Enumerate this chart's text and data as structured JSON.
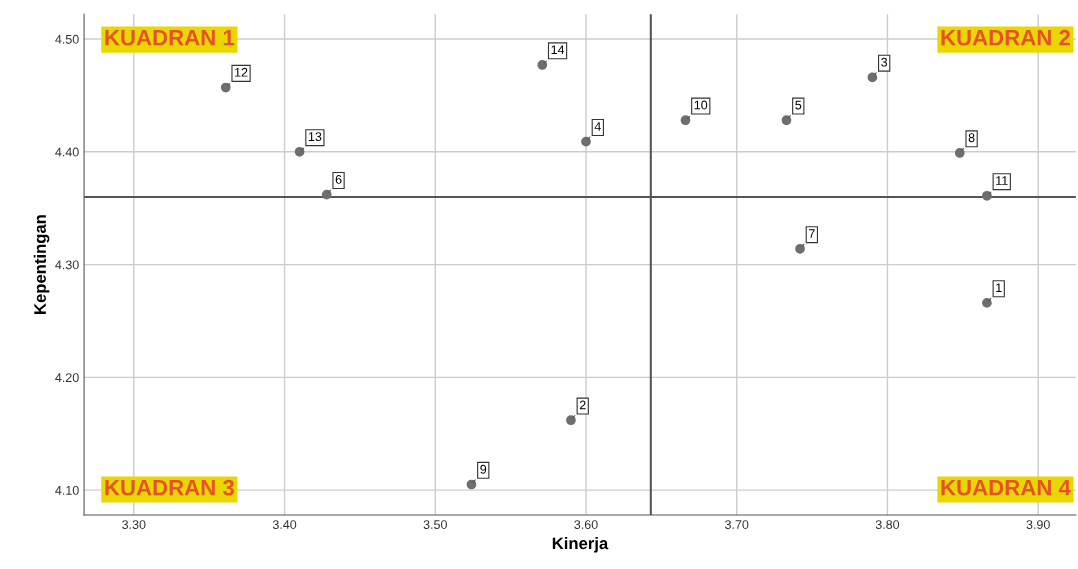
{
  "chart_data": {
    "type": "scatter",
    "xlabel": "Kinerja",
    "ylabel": "Kepentingan",
    "x": [
      3.866,
      3.59,
      3.79,
      3.6,
      3.733,
      3.428,
      3.742,
      3.848,
      3.524,
      3.666,
      3.866,
      3.361,
      3.41,
      3.571
    ],
    "series": [
      {
        "color": "#6e6e6e",
        "values": [
          4.266,
          4.162,
          4.466,
          4.409,
          4.428,
          4.362,
          4.314,
          4.399,
          4.105,
          4.428,
          4.361,
          4.457,
          4.4,
          4.477
        ]
      }
    ],
    "marker": "circle",
    "grid": true,
    "xlim": [
      3.267,
      3.925
    ],
    "xticks": [
      {
        "value": 3.3,
        "label": "3.30"
      },
      {
        "value": 3.4,
        "label": "3.40"
      },
      {
        "value": 3.5,
        "label": "3.50"
      },
      {
        "value": 3.6,
        "label": "3.60"
      },
      {
        "value": 3.7,
        "label": "3.70"
      },
      {
        "value": 3.8,
        "label": "3.80"
      },
      {
        "value": 3.9,
        "label": "3.90"
      }
    ],
    "ylim": [
      4.078,
      4.522
    ],
    "yticks": [
      {
        "value": 4.1,
        "label": "4.10"
      },
      {
        "value": 4.2,
        "label": "4.20"
      },
      {
        "value": 4.3,
        "label": "4.30"
      },
      {
        "value": 4.4,
        "label": "4.40"
      },
      {
        "value": 4.5,
        "label": "4.50"
      }
    ],
    "ref_lines": [
      {
        "axis": "y",
        "value": 4.36,
        "color": "#555555"
      },
      {
        "axis": "x",
        "value": 3.643,
        "color": "#555555"
      }
    ],
    "annotations": [
      "KUADRAN 1",
      "KUADRAN 2",
      "KUADRAN 3",
      "KUADRAN 4",
      {
        "text": "1",
        "x": 3.866,
        "y": 4.266
      },
      {
        "text": "2",
        "x": 3.59,
        "y": 4.162
      },
      {
        "text": "3",
        "x": 3.79,
        "y": 4.466
      },
      {
        "text": "4",
        "x": 3.6,
        "y": 4.409
      },
      {
        "text": "5",
        "x": 3.733,
        "y": 4.428
      },
      {
        "text": "6",
        "x": 3.428,
        "y": 4.362
      },
      {
        "text": "7",
        "x": 3.742,
        "y": 4.314
      },
      {
        "text": "8",
        "x": 3.848,
        "y": 4.399
      },
      {
        "text": "9",
        "x": 3.524,
        "y": 4.105
      },
      {
        "text": "10",
        "x": 3.666,
        "y": 4.428
      },
      {
        "text": "11",
        "x": 3.866,
        "y": 4.361
      },
      {
        "text": "12",
        "x": 3.361,
        "y": 4.457
      },
      {
        "text": "13",
        "x": 3.41,
        "y": 4.4
      },
      {
        "text": "14",
        "x": 3.571,
        "y": 4.477
      }
    ]
  }
}
